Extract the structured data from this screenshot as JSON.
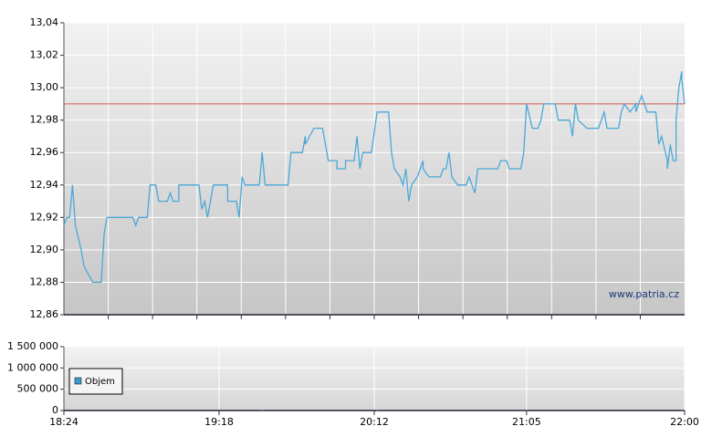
{
  "chart_data": [
    {
      "type": "line",
      "color": "#4aa8d8",
      "ylim": [
        12.86,
        13.04
      ],
      "yticks": [
        {
          "value": 12.86,
          "label": "12,86"
        },
        {
          "value": 12.88,
          "label": "12,88"
        },
        {
          "value": 12.9,
          "label": "12,90"
        },
        {
          "value": 12.92,
          "label": "12,92"
        },
        {
          "value": 12.94,
          "label": "12,94"
        },
        {
          "value": 12.96,
          "label": "12,96"
        },
        {
          "value": 12.98,
          "label": "12,98"
        },
        {
          "value": 13.0,
          "label": "13,00"
        },
        {
          "value": 13.02,
          "label": "13,02"
        },
        {
          "value": 13.04,
          "label": "13,04"
        }
      ],
      "xlim": [
        "18:24",
        "22:00"
      ],
      "x_grid_divisions": 14,
      "grid": true,
      "reference_line": {
        "value": 12.99,
        "color": "#d9534f"
      },
      "annotation": "www.patria.cz",
      "x": [
        "18:24",
        "18:25",
        "18:26",
        "18:27",
        "18:28",
        "18:30",
        "18:31",
        "18:34",
        "18:37",
        "18:38",
        "18:39",
        "18:48",
        "18:49",
        "18:50",
        "18:53",
        "18:54",
        "18:56",
        "18:57",
        "19:00",
        "19:01",
        "19:02",
        "19:04",
        "19:04",
        "19:11",
        "19:12",
        "19:13",
        "19:14",
        "19:16",
        "19:21",
        "19:21",
        "19:24",
        "19:25",
        "19:26",
        "19:27",
        "19:32",
        "19:33",
        "19:34",
        "19:42",
        "19:43",
        "19:47",
        "19:48",
        "19:48",
        "19:51",
        "19:54",
        "19:55",
        "19:56",
        "19:59",
        "19:59",
        "20:02",
        "20:02",
        "20:05",
        "20:06",
        "20:07",
        "20:08",
        "20:11",
        "20:13",
        "20:17",
        "20:18",
        "20:19",
        "20:21",
        "20:22",
        "20:23",
        "20:24",
        "20:25",
        "20:27",
        "20:29",
        "20:29",
        "20:31",
        "20:35",
        "20:36",
        "20:37",
        "20:38",
        "20:39",
        "20:41",
        "20:44",
        "20:45",
        "20:47",
        "20:48",
        "20:55",
        "20:56",
        "20:58",
        "20:59",
        "21:03",
        "21:04",
        "21:05",
        "21:07",
        "21:09",
        "21:10",
        "21:11",
        "21:15",
        "21:16",
        "21:20",
        "21:21",
        "21:22",
        "21:23",
        "21:26",
        "21:30",
        "21:32",
        "21:33",
        "21:37",
        "21:38",
        "21:39",
        "21:41",
        "21:43",
        "21:43",
        "21:45",
        "21:47",
        "21:50",
        "21:51",
        "21:52",
        "21:54",
        "21:54",
        "21:55",
        "21:56",
        "21:57",
        "21:57",
        "21:58",
        "21:59",
        "21:59",
        "22:00"
      ],
      "values": [
        12.915,
        12.92,
        12.92,
        12.94,
        12.915,
        12.9,
        12.89,
        12.88,
        12.88,
        12.91,
        12.92,
        12.92,
        12.915,
        12.92,
        12.92,
        12.94,
        12.94,
        12.93,
        12.93,
        12.935,
        12.93,
        12.93,
        12.94,
        12.94,
        12.925,
        12.93,
        12.92,
        12.94,
        12.94,
        12.93,
        12.93,
        12.92,
        12.945,
        12.94,
        12.94,
        12.96,
        12.94,
        12.94,
        12.96,
        12.96,
        12.97,
        12.965,
        12.975,
        12.975,
        12.965,
        12.955,
        12.955,
        12.95,
        12.95,
        12.955,
        12.955,
        12.97,
        12.95,
        12.96,
        12.96,
        12.985,
        12.985,
        12.96,
        12.95,
        12.945,
        12.94,
        12.95,
        12.93,
        12.94,
        12.945,
        12.955,
        12.95,
        12.945,
        12.945,
        12.95,
        12.95,
        12.96,
        12.945,
        12.94,
        12.94,
        12.945,
        12.935,
        12.95,
        12.95,
        12.955,
        12.955,
        12.95,
        12.95,
        12.96,
        12.99,
        12.975,
        12.975,
        12.98,
        12.99,
        12.99,
        12.98,
        12.98,
        12.97,
        12.99,
        12.98,
        12.975,
        12.975,
        12.985,
        12.975,
        12.975,
        12.985,
        12.99,
        12.985,
        12.99,
        12.985,
        12.995,
        12.985,
        12.985,
        12.965,
        12.97,
        12.955,
        12.95,
        12.965,
        12.955,
        12.955,
        12.98,
        13.0,
        13.01,
        13.005,
        12.99
      ]
    },
    {
      "type": "bar",
      "ylim": [
        0,
        1500000
      ],
      "yticks": [
        0,
        {
          "value": 500000,
          "label": "500 000"
        },
        {
          "value": 1000000,
          "label": "1 000 000"
        },
        {
          "value": 1500000,
          "label": "1 500 000"
        }
      ],
      "xlim": [
        "18:24",
        "22:00"
      ],
      "xticks": [
        "18:24",
        "19:18",
        "20:12",
        "21:05",
        "22:00"
      ],
      "grid": true,
      "legend": "bottom-left",
      "x": [
        "19:33",
        "20:13",
        "21:05",
        "21:59"
      ],
      "series": [
        {
          "name": "Objem",
          "color": "#3d9ad1",
          "values": [
            8000,
            6000,
            7000,
            10000
          ]
        }
      ]
    }
  ]
}
